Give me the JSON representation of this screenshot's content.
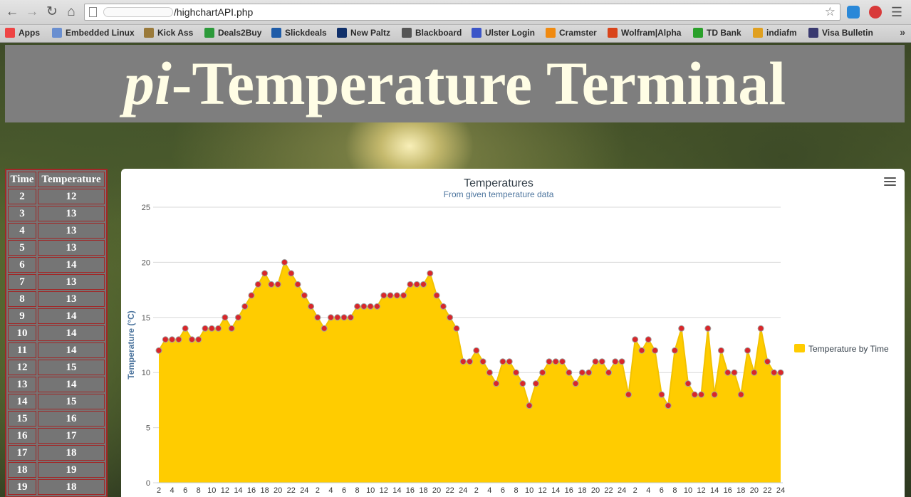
{
  "browser": {
    "url_suffix": "/highchartAPI.php",
    "bookmarks": [
      {
        "label": "Apps",
        "icon": "apps-grid-icon",
        "color": "#e44"
      },
      {
        "label": "Embedded Linux",
        "icon": "folder-icon",
        "color": "#6a8fd0"
      },
      {
        "label": "Kick Ass",
        "icon": "shield-icon",
        "color": "#9a7a3a"
      },
      {
        "label": "Deals2Buy",
        "icon": "deals-icon",
        "color": "#2c9a3a"
      },
      {
        "label": "Slickdeals",
        "icon": "sd-icon",
        "color": "#1f5ca8"
      },
      {
        "label": "New Paltz",
        "icon": "newpaltz-icon",
        "color": "#10306a"
      },
      {
        "label": "Blackboard",
        "icon": "blackboard-icon",
        "color": "#555"
      },
      {
        "label": "Ulster Login",
        "icon": "ulster-icon",
        "color": "#3b55c8"
      },
      {
        "label": "Cramster",
        "icon": "cramster-icon",
        "color": "#f08a10"
      },
      {
        "label": "Wolfram|Alpha",
        "icon": "wolfram-icon",
        "color": "#d9441a"
      },
      {
        "label": "TD Bank",
        "icon": "td-icon",
        "color": "#2aa02a"
      },
      {
        "label": "indiafm",
        "icon": "play-icon",
        "color": "#e0a020"
      },
      {
        "label": "Visa Bulletin",
        "icon": "seal-icon",
        "color": "#3a3a70"
      }
    ]
  },
  "banner": {
    "title_italic": "pi",
    "title_rest": "-Temperature Terminal"
  },
  "table": {
    "headers": [
      "Time",
      "Temperature"
    ],
    "rows": [
      [
        "2",
        "12"
      ],
      [
        "3",
        "13"
      ],
      [
        "4",
        "13"
      ],
      [
        "5",
        "13"
      ],
      [
        "6",
        "14"
      ],
      [
        "7",
        "13"
      ],
      [
        "8",
        "13"
      ],
      [
        "9",
        "14"
      ],
      [
        "10",
        "14"
      ],
      [
        "11",
        "14"
      ],
      [
        "12",
        "15"
      ],
      [
        "13",
        "14"
      ],
      [
        "14",
        "15"
      ],
      [
        "15",
        "16"
      ],
      [
        "16",
        "17"
      ],
      [
        "17",
        "18"
      ],
      [
        "18",
        "19"
      ],
      [
        "19",
        "18"
      ]
    ]
  },
  "chart_data": {
    "type": "area",
    "title": "Temperatures",
    "subtitle": "From given temperature data",
    "ylabel": "Temperature (°C)",
    "xlabel": "",
    "ylim": [
      0,
      25
    ],
    "yticks": [
      0,
      5,
      10,
      15,
      20,
      25
    ],
    "legend": "right",
    "area_color": "#ffcc00",
    "marker_color": "#d9262a",
    "xtick_labels": [
      "2",
      "4",
      "6",
      "8",
      "10",
      "12",
      "14",
      "16",
      "18",
      "20",
      "22",
      "24",
      "2",
      "4",
      "6",
      "8",
      "10",
      "12",
      "14",
      "16",
      "18",
      "20",
      "22",
      "24",
      "2",
      "4",
      "6",
      "8",
      "10",
      "12",
      "14",
      "16",
      "18",
      "20",
      "22",
      "24",
      "2",
      "4",
      "6",
      "8",
      "10",
      "12",
      "14",
      "16",
      "18",
      "20",
      "22",
      "24"
    ],
    "series": [
      {
        "name": "Temperature by Time",
        "values": [
          12,
          13,
          13,
          13,
          14,
          13,
          13,
          14,
          14,
          14,
          15,
          14,
          15,
          16,
          17,
          18,
          19,
          18,
          18,
          20,
          19,
          18,
          17,
          16,
          15,
          14,
          15,
          15,
          15,
          15,
          16,
          16,
          16,
          16,
          17,
          17,
          17,
          17,
          18,
          18,
          18,
          19,
          17,
          16,
          15,
          14,
          11,
          11,
          12,
          11,
          10,
          9,
          11,
          11,
          10,
          9,
          7,
          9,
          10,
          11,
          11,
          11,
          10,
          9,
          10,
          10,
          11,
          11,
          10,
          11,
          11,
          8,
          13,
          12,
          13,
          12,
          8,
          7,
          12,
          14,
          9,
          8,
          8,
          14,
          8,
          12,
          10,
          10,
          8,
          12,
          10,
          14,
          11,
          10,
          10
        ]
      }
    ]
  }
}
